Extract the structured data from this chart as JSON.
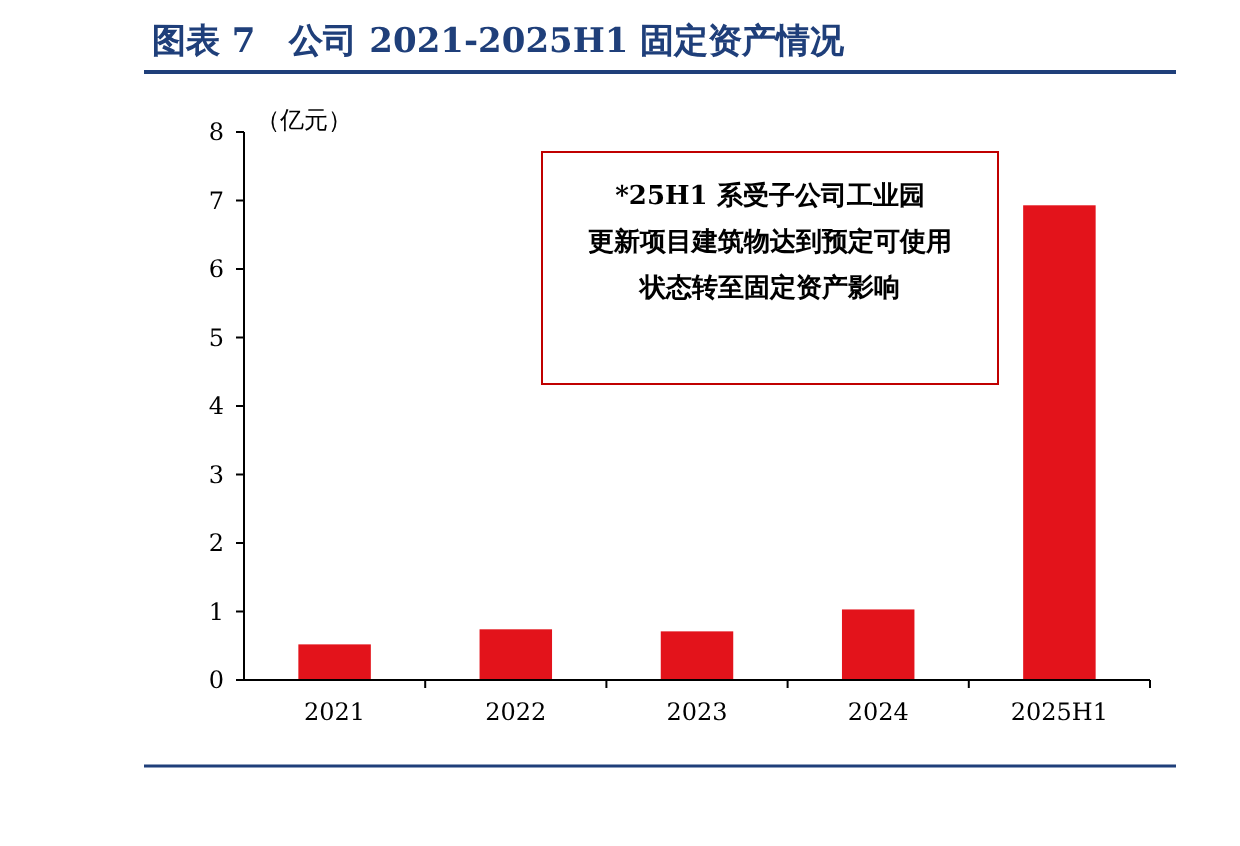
{
  "chart_data": {
    "type": "bar",
    "title": "图表 7　公司 2021-2025H1 固定资产情况",
    "ylabel": "（亿元）",
    "categories": [
      "2021",
      "2022",
      "2023",
      "2024",
      "2025H1"
    ],
    "values": [
      0.52,
      0.74,
      0.71,
      1.03,
      6.93
    ],
    "color": "#e3131b",
    "ylim": [
      0,
      8
    ],
    "yticks": [
      0,
      1,
      2,
      3,
      4,
      5,
      6,
      7,
      8
    ],
    "grid": false,
    "annotations": [
      "*25H1 系受子公司工业园更新项目建筑物达到预定可使用状态转至固定资产影响"
    ]
  }
}
